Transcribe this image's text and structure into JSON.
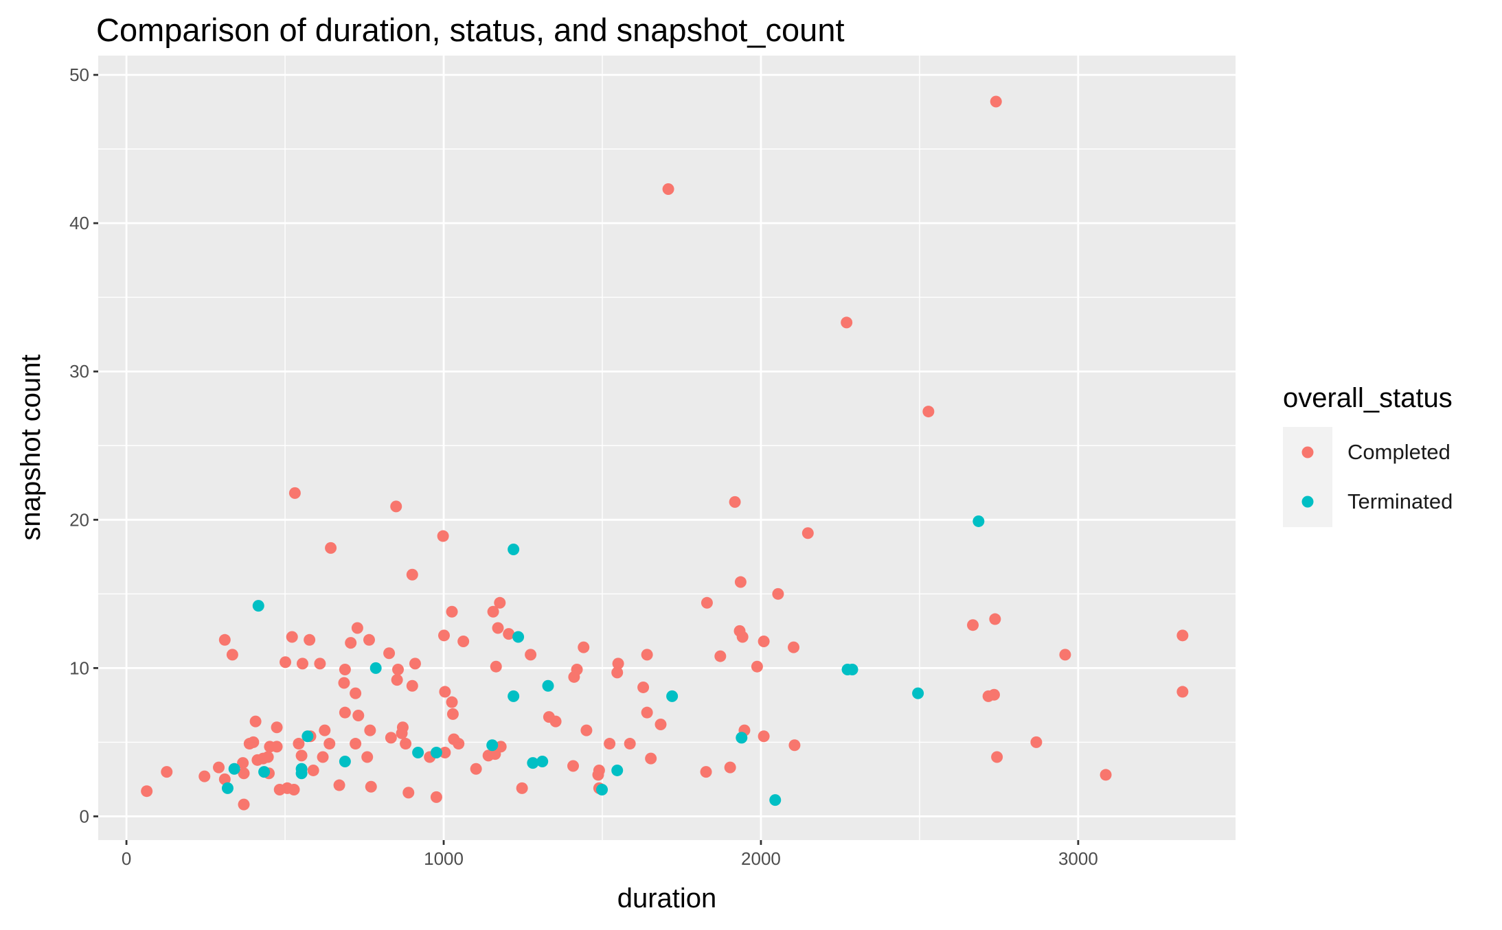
{
  "chart_data": {
    "type": "scatter",
    "title": "Comparison of duration, status, and snapshot_count",
    "xlabel": "duration",
    "ylabel": "snapshot count",
    "xlim": [
      -89,
      3496
    ],
    "ylim": [
      -1.6,
      51.3
    ],
    "x_ticks": [
      0,
      1000,
      2000,
      3000
    ],
    "y_ticks": [
      0,
      10,
      20,
      30,
      40,
      50
    ],
    "grid": true,
    "legend": {
      "title": "overall_status",
      "position": "right"
    },
    "colors": {
      "panel": "#EBEBEB",
      "grid": "#FFFFFF"
    },
    "series": [
      {
        "name": "Completed",
        "color": "#F8766D",
        "points": [
          [
            64,
            1.7
          ],
          [
            127,
            3.0
          ],
          [
            246,
            2.7
          ],
          [
            291,
            3.3
          ],
          [
            310,
            11.9
          ],
          [
            310,
            2.5
          ],
          [
            334,
            10.9
          ],
          [
            367,
            3.6
          ],
          [
            370,
            2.9
          ],
          [
            370,
            0.8
          ],
          [
            388,
            4.9
          ],
          [
            400,
            5.0
          ],
          [
            407,
            6.4
          ],
          [
            413,
            3.8
          ],
          [
            431,
            3.9
          ],
          [
            446,
            4.0
          ],
          [
            452,
            4.7
          ],
          [
            449,
            2.9
          ],
          [
            474,
            6.0
          ],
          [
            474,
            4.7
          ],
          [
            483,
            1.8
          ],
          [
            501,
            10.4
          ],
          [
            507,
            1.9
          ],
          [
            522,
            12.1
          ],
          [
            528,
            1.8
          ],
          [
            531,
            21.8
          ],
          [
            543,
            4.9
          ],
          [
            552,
            4.1
          ],
          [
            555,
            10.3
          ],
          [
            577,
            11.9
          ],
          [
            580,
            5.4
          ],
          [
            589,
            3.1
          ],
          [
            610,
            10.3
          ],
          [
            619,
            4.0
          ],
          [
            625,
            5.8
          ],
          [
            640,
            4.9
          ],
          [
            644,
            18.1
          ],
          [
            671,
            2.1
          ],
          [
            686,
            9.0
          ],
          [
            689,
            9.9
          ],
          [
            689,
            7.0
          ],
          [
            707,
            11.7
          ],
          [
            722,
            8.3
          ],
          [
            722,
            4.9
          ],
          [
            728,
            12.7
          ],
          [
            731,
            6.8
          ],
          [
            759,
            4.0
          ],
          [
            765,
            11.9
          ],
          [
            768,
            5.8
          ],
          [
            771,
            2.0
          ],
          [
            828,
            11.0
          ],
          [
            834,
            5.3
          ],
          [
            850,
            20.9
          ],
          [
            853,
            9.2
          ],
          [
            856,
            9.9
          ],
          [
            868,
            5.6
          ],
          [
            871,
            6.0
          ],
          [
            880,
            4.9
          ],
          [
            889,
            1.6
          ],
          [
            901,
            16.3
          ],
          [
            901,
            8.8
          ],
          [
            910,
            10.3
          ],
          [
            956,
            4.0
          ],
          [
            977,
            1.3
          ],
          [
            998,
            18.9
          ],
          [
            1001,
            12.2
          ],
          [
            1004,
            8.4
          ],
          [
            1004,
            4.3
          ],
          [
            1026,
            13.8
          ],
          [
            1026,
            7.7
          ],
          [
            1029,
            6.9
          ],
          [
            1032,
            5.2
          ],
          [
            1047,
            4.9
          ],
          [
            1062,
            11.8
          ],
          [
            1102,
            3.2
          ],
          [
            1141,
            4.1
          ],
          [
            1156,
            13.8
          ],
          [
            1162,
            4.2
          ],
          [
            1165,
            10.1
          ],
          [
            1171,
            12.7
          ],
          [
            1177,
            14.4
          ],
          [
            1180,
            4.7
          ],
          [
            1205,
            12.3
          ],
          [
            1247,
            1.9
          ],
          [
            1274,
            10.9
          ],
          [
            1332,
            6.7
          ],
          [
            1353,
            6.4
          ],
          [
            1408,
            3.4
          ],
          [
            1411,
            9.4
          ],
          [
            1420,
            9.9
          ],
          [
            1441,
            11.4
          ],
          [
            1450,
            5.8
          ],
          [
            1487,
            2.8
          ],
          [
            1490,
            3.1
          ],
          [
            1490,
            1.9
          ],
          [
            1523,
            4.9
          ],
          [
            1547,
            9.7
          ],
          [
            1550,
            10.3
          ],
          [
            1587,
            4.9
          ],
          [
            1629,
            8.7
          ],
          [
            1641,
            10.9
          ],
          [
            1641,
            7.0
          ],
          [
            1653,
            3.9
          ],
          [
            1684,
            6.2
          ],
          [
            1708,
            42.3
          ],
          [
            1827,
            3.0
          ],
          [
            1830,
            14.4
          ],
          [
            1872,
            10.8
          ],
          [
            1903,
            3.3
          ],
          [
            1918,
            21.2
          ],
          [
            1933,
            12.5
          ],
          [
            1936,
            15.8
          ],
          [
            1942,
            12.1
          ],
          [
            1948,
            5.8
          ],
          [
            1988,
            10.1
          ],
          [
            2009,
            5.4
          ],
          [
            2009,
            11.8
          ],
          [
            2054,
            15.0
          ],
          [
            2103,
            11.4
          ],
          [
            2106,
            4.8
          ],
          [
            2148,
            19.1
          ],
          [
            2270,
            33.3
          ],
          [
            2528,
            27.3
          ],
          [
            2668,
            12.9
          ],
          [
            2717,
            8.1
          ],
          [
            2735,
            8.2
          ],
          [
            2738,
            13.3
          ],
          [
            2741,
            48.2
          ],
          [
            2744,
            4.0
          ],
          [
            2868,
            5.0
          ],
          [
            2959,
            10.9
          ],
          [
            3087,
            2.8
          ],
          [
            3329,
            12.2
          ],
          [
            3329,
            8.4
          ]
        ]
      },
      {
        "name": "Terminated",
        "color": "#00BFC4",
        "points": [
          [
            319,
            1.9
          ],
          [
            340,
            3.2
          ],
          [
            416,
            14.2
          ],
          [
            434,
            3.0
          ],
          [
            552,
            3.2
          ],
          [
            552,
            2.9
          ],
          [
            571,
            5.4
          ],
          [
            689,
            3.7
          ],
          [
            786,
            10.0
          ],
          [
            919,
            4.3
          ],
          [
            977,
            4.3
          ],
          [
            1153,
            4.8
          ],
          [
            1220,
            18.0
          ],
          [
            1220,
            8.1
          ],
          [
            1235,
            12.1
          ],
          [
            1281,
            3.6
          ],
          [
            1311,
            3.7
          ],
          [
            1329,
            8.8
          ],
          [
            1499,
            1.8
          ],
          [
            1547,
            3.1
          ],
          [
            1720,
            8.1
          ],
          [
            1939,
            5.3
          ],
          [
            2045,
            1.1
          ],
          [
            2273,
            9.9
          ],
          [
            2288,
            9.9
          ],
          [
            2495,
            8.3
          ],
          [
            2686,
            19.9
          ]
        ]
      }
    ]
  }
}
